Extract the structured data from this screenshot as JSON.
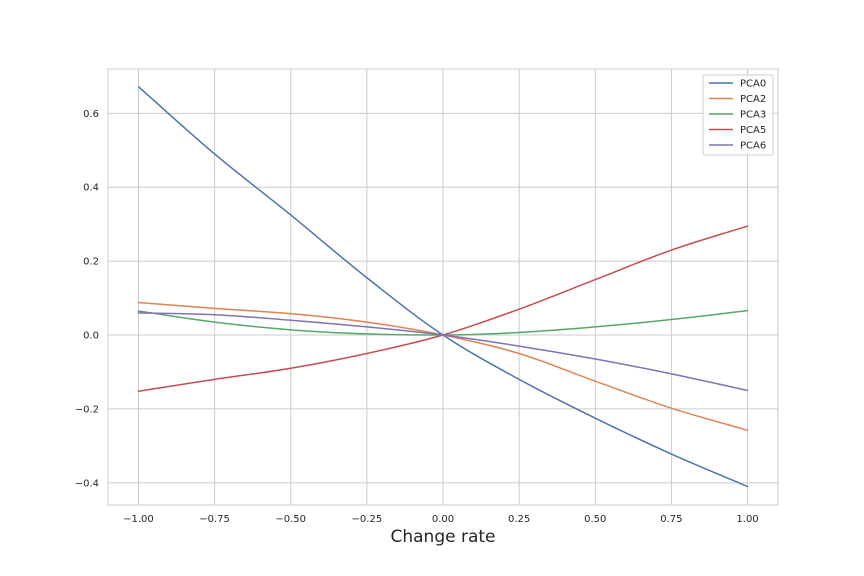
{
  "chart_data": {
    "type": "line",
    "title": "",
    "xlabel": "Change rate",
    "ylabel": "",
    "xlim": [
      -1.1,
      1.1
    ],
    "ylim": [
      -0.46,
      0.72
    ],
    "xticks": [
      -1.0,
      -0.75,
      -0.5,
      -0.25,
      0.0,
      0.25,
      0.5,
      0.75,
      1.0
    ],
    "xtick_labels": [
      "−1.00",
      "−0.75",
      "−0.50",
      "−0.25",
      "0.00",
      "0.25",
      "0.50",
      "0.75",
      "1.00"
    ],
    "yticks": [
      -0.4,
      -0.2,
      0.0,
      0.2,
      0.4,
      0.6
    ],
    "ytick_labels": [
      "−0.4",
      "−0.2",
      "0.0",
      "0.2",
      "0.4",
      "0.6"
    ],
    "grid": true,
    "legend_position": "top-right",
    "x": [
      -1.0,
      -0.75,
      -0.5,
      -0.25,
      0.0,
      0.25,
      0.5,
      0.75,
      1.0
    ],
    "series": [
      {
        "name": "PCA0",
        "color": "#4c72b0",
        "values": [
          0.672,
          0.49,
          0.325,
          0.155,
          0.0,
          -0.12,
          -0.225,
          -0.322,
          -0.41
        ]
      },
      {
        "name": "PCA2",
        "color": "#dd8452",
        "values": [
          0.088,
          0.072,
          0.058,
          0.035,
          0.0,
          -0.05,
          -0.125,
          -0.198,
          -0.258
        ]
      },
      {
        "name": "PCA3",
        "color": "#55a868",
        "values": [
          0.065,
          0.035,
          0.014,
          0.003,
          0.0,
          0.007,
          0.022,
          0.042,
          0.066
        ]
      },
      {
        "name": "PCA5",
        "color": "#c44e52",
        "values": [
          -0.152,
          -0.12,
          -0.09,
          -0.05,
          0.0,
          0.07,
          0.15,
          0.23,
          0.295
        ]
      },
      {
        "name": "PCA6",
        "color": "#8172b3",
        "values": [
          0.06,
          0.055,
          0.04,
          0.022,
          0.0,
          -0.03,
          -0.065,
          -0.105,
          -0.15
        ]
      }
    ]
  }
}
